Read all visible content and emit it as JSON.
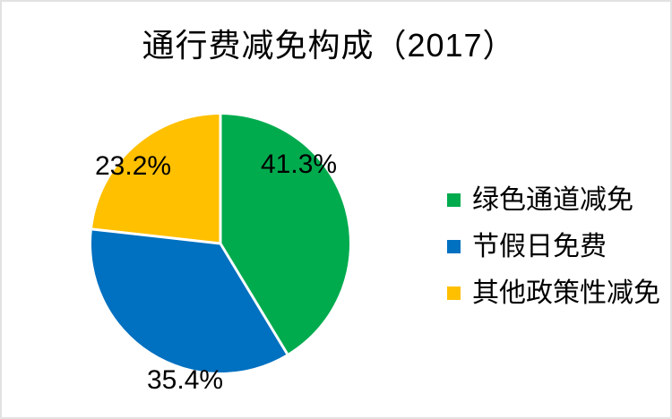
{
  "title": "通行费减免构成（2017）",
  "frame": {
    "background": "#ffffff",
    "border_color": "#e2e2e2"
  },
  "chart_data": {
    "type": "pie",
    "title": "通行费减免构成（2017）",
    "start_angle_deg": 0,
    "direction": "clockwise",
    "legend_position": "right",
    "slice_border_color": "#ffffff",
    "label_color": "#000000",
    "series": [
      {
        "name": "绿色通道减免",
        "value": 41.3,
        "label": "41.3%",
        "color": "#00AB4E"
      },
      {
        "name": "节假日免费",
        "value": 35.4,
        "label": "35.4%",
        "color": "#0070C0"
      },
      {
        "name": "其他政策性减免",
        "value": 23.2,
        "label": "23.2%",
        "color": "#FFC000"
      }
    ]
  }
}
